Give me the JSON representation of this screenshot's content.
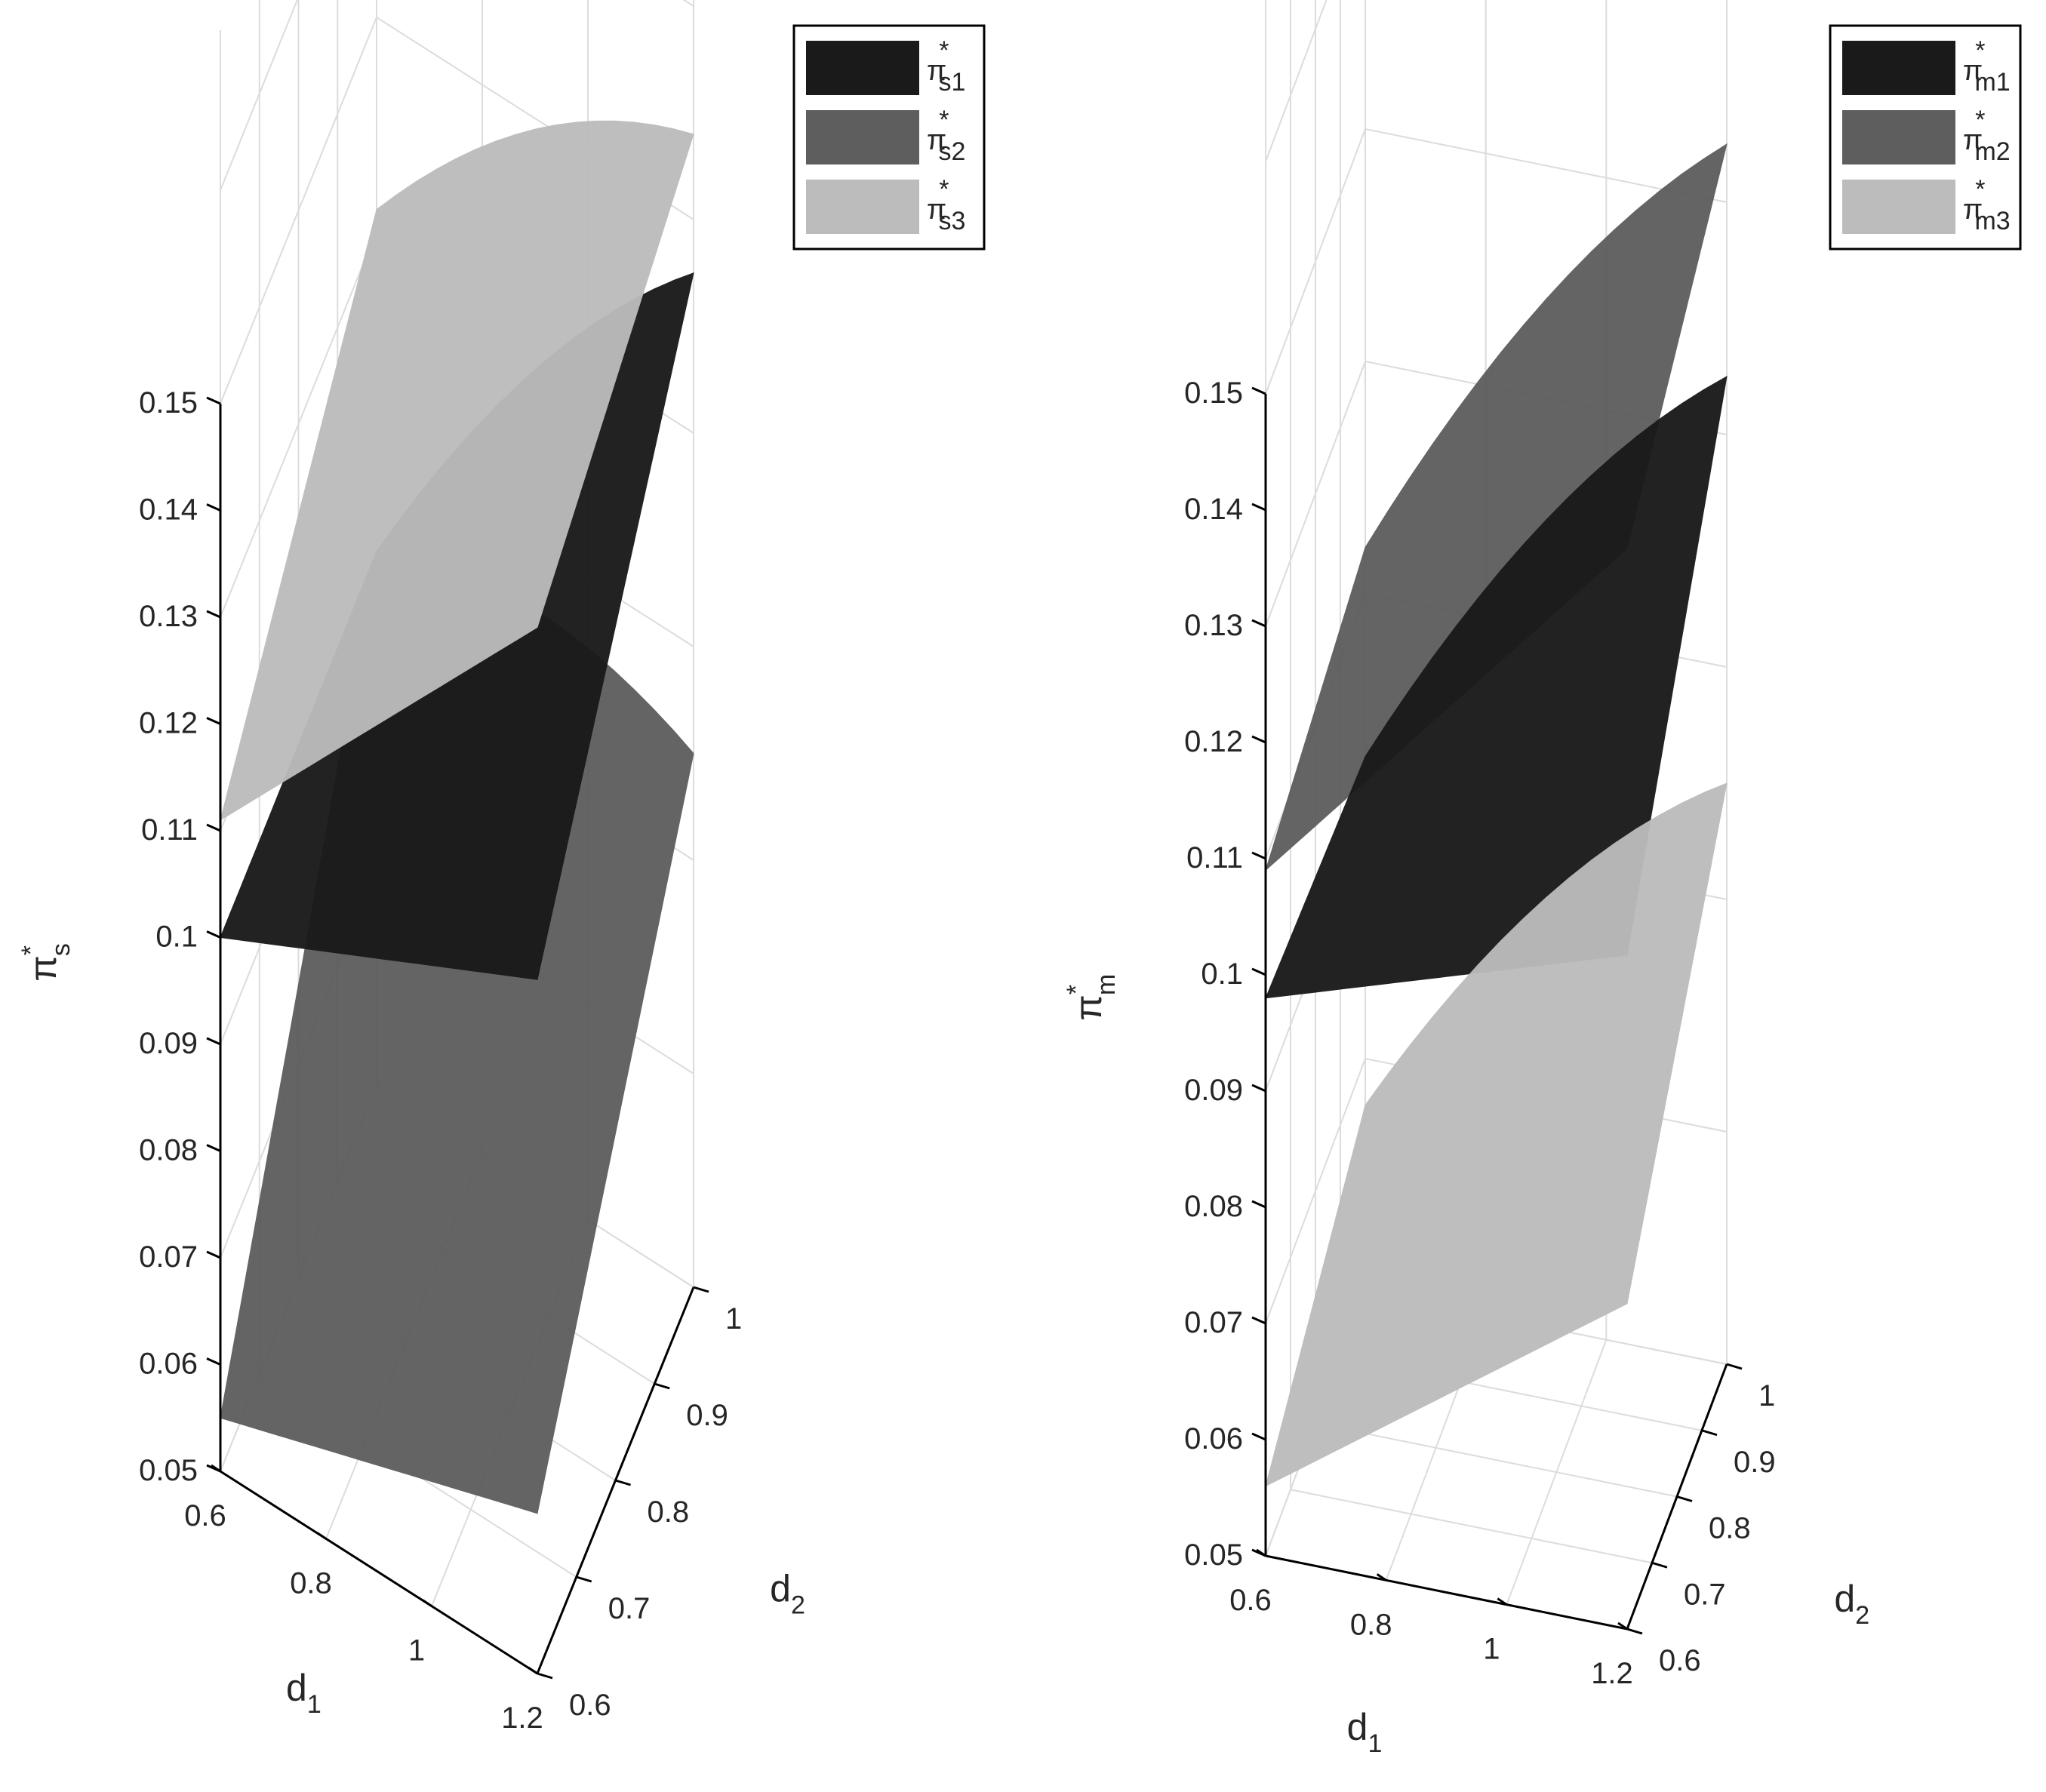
{
  "chart_data": [
    {
      "type": "surface",
      "x_name": "d",
      "x_sub": "1",
      "y_name": "d",
      "y_sub": "2",
      "z_name": "π",
      "z_sub": "s",
      "z_sup": "*",
      "xlim": [
        0.6,
        1.2
      ],
      "ylim": [
        0.6,
        1.0
      ],
      "zlim": [
        0.05,
        0.15
      ],
      "x_ticks": [
        "0.6",
        "0.8",
        "1",
        "1.2"
      ],
      "y_ticks": [
        "0.6",
        "0.7",
        "0.8",
        "0.9",
        "1"
      ],
      "z_ticks": [
        "0.05",
        "0.06",
        "0.07",
        "0.08",
        "0.09",
        "0.1",
        "0.11",
        "0.12",
        "0.13",
        "0.14",
        "0.15"
      ],
      "legend_position": "top-right",
      "series": [
        {
          "name": "π",
          "sub": "s1",
          "sup": "*",
          "color": "#1a1a1a",
          "z_d1_lo_d2_lo": 0.1,
          "z_d1_hi_d2_lo": 0.115,
          "z_d1_lo_d2_hi": 0.1,
          "z_d1_hi_d2_hi": 0.145
        },
        {
          "name": "π",
          "sub": "s2",
          "sup": "*",
          "color": "#5e5e5e",
          "z_d1_lo_d2_lo": 0.055,
          "z_d1_hi_d2_lo": 0.065,
          "z_d1_lo_d2_hi": 0.1,
          "z_d1_hi_d2_hi": 0.1
        },
        {
          "name": "π",
          "sub": "s3",
          "sup": "*",
          "color": "#bcbcbc",
          "z_d1_lo_d2_lo": 0.111,
          "z_d1_hi_d2_lo": 0.148,
          "z_d1_lo_d2_hi": 0.132,
          "z_d1_hi_d2_hi": 0.158
        }
      ]
    },
    {
      "type": "surface",
      "x_name": "d",
      "x_sub": "1",
      "y_name": "d",
      "y_sub": "2",
      "z_name": "π",
      "z_sub": "m",
      "z_sup": "*",
      "xlim": [
        0.6,
        1.2
      ],
      "ylim": [
        0.6,
        1.0
      ],
      "zlim": [
        0.05,
        0.15
      ],
      "x_ticks": [
        "0.6",
        "0.8",
        "1",
        "1.2"
      ],
      "y_ticks": [
        "0.6",
        "0.7",
        "0.8",
        "0.9",
        "1"
      ],
      "z_ticks": [
        "0.05",
        "0.06",
        "0.07",
        "0.08",
        "0.09",
        "0.1",
        "0.11",
        "0.12",
        "0.13",
        "0.14",
        "0.15"
      ],
      "legend_position": "top-right",
      "series": [
        {
          "name": "π",
          "sub": "m1",
          "sup": "*",
          "color": "#1a1a1a",
          "z_d1_lo_d2_lo": 0.098,
          "z_d1_hi_d2_lo": 0.108,
          "z_d1_lo_d2_hi": 0.096,
          "z_d1_hi_d2_hi": 0.135
        },
        {
          "name": "π",
          "sub": "m2",
          "sup": "*",
          "color": "#5e5e5e",
          "z_d1_lo_d2_lo": 0.109,
          "z_d1_hi_d2_lo": 0.143,
          "z_d1_lo_d2_hi": 0.114,
          "z_d1_hi_d2_hi": 0.155
        },
        {
          "name": "π",
          "sub": "m3",
          "sup": "*",
          "color": "#bcbcbc",
          "z_d1_lo_d2_lo": 0.056,
          "z_d1_hi_d2_lo": 0.078,
          "z_d1_lo_d2_hi": 0.066,
          "z_d1_hi_d2_hi": 0.1
        }
      ]
    }
  ]
}
